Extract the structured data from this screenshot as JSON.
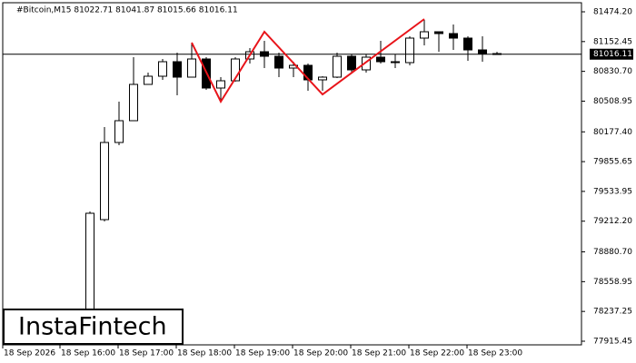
{
  "chart_data": {
    "type": "candlestick",
    "title": "#Bitcoin,M15  81022.71 81041.87 81015.66 81016.11",
    "watermark": "InstaFintech",
    "x_labels": [
      "18 Sep 2026",
      "18 Sep 16:00",
      "18 Sep 17:00",
      "18 Sep 18:00",
      "18 Sep 19:00",
      "18 Sep 20:00",
      "18 Sep 21:00",
      "18 Sep 22:00",
      "18 Sep 23:00"
    ],
    "open": [
      77974.2,
      79229.1,
      80062.4,
      80297.7,
      80689.9,
      80778.1,
      80935.0,
      80768.3,
      80964.4,
      80650.7,
      80729.0,
      80964.4,
      81042.8,
      80993.8,
      80866.4,
      80895.8,
      80739.0,
      80768.3,
      80993.8,
      80846.8,
      80984.0,
      80935.0,
      80925.2,
      81189.9,
      81258.5,
      81238.9,
      81189.9,
      81062.4,
      81022.71
    ],
    "high": [
      79317.4,
      80229.1,
      80503.6,
      80984.0,
      80817.3,
      80964.4,
      81033.0,
      81131.1,
      80984.0,
      80768.3,
      80984.0,
      81082.0,
      81160.5,
      81033.0,
      80935.0,
      80915.4,
      80778.1,
      81033.0,
      81013.4,
      81013.4,
      81160.5,
      81013.4,
      81209.5,
      81386.0,
      81258.5,
      81337.0,
      81209.5,
      81209.5,
      81041.87
    ],
    "low": [
      77895.7,
      79209.5,
      80033.0,
      80297.7,
      80689.9,
      80739.0,
      80572.2,
      80768.3,
      80631.1,
      80523.2,
      80719.3,
      80915.4,
      80866.4,
      80768.3,
      80768.3,
      80621.3,
      80621.3,
      80758.5,
      80817.3,
      80817.3,
      80915.4,
      80866.4,
      80895.8,
      81111.5,
      81042.8,
      81062.4,
      80944.8,
      80935.0,
      81015.66
    ],
    "close": [
      79297.7,
      80062.4,
      80297.7,
      80689.9,
      80778.1,
      80935.0,
      80768.3,
      80964.4,
      80650.7,
      80729.0,
      80964.4,
      81042.8,
      80993.8,
      80866.4,
      80895.8,
      80739.0,
      80768.3,
      80993.8,
      80846.8,
      80984.0,
      80935.0,
      80925.2,
      81189.9,
      81258.5,
      81238.9,
      81189.9,
      81062.4,
      81022.7,
      81016.11
    ],
    "current_price": 81016.11,
    "pattern": {
      "color": "#e8141a",
      "candle_index": [
        7,
        9,
        12,
        16,
        23
      ],
      "values": [
        81140.9,
        80503.6,
        81258.5,
        80582.0,
        81395.8
      ]
    },
    "ylim": [
      77876.2,
      81572.2
    ],
    "yticks": [
      {
        "value": 81474.2,
        "label": "81474.20"
      },
      {
        "value": 81152.45,
        "label": "81152.45"
      },
      {
        "value": 80830.7,
        "label": "80830.70"
      },
      {
        "value": 80508.95,
        "label": "80508.95"
      },
      {
        "value": 80177.4,
        "label": "80177.40"
      },
      {
        "value": 79855.65,
        "label": "79855.65"
      },
      {
        "value": 79533.95,
        "label": "79533.95"
      },
      {
        "value": 79212.2,
        "label": "79212.20"
      },
      {
        "value": 78880.7,
        "label": "78880.70"
      },
      {
        "value": 78558.95,
        "label": "78558.95"
      },
      {
        "value": 78237.25,
        "label": "78237.25"
      },
      {
        "value": 77915.45,
        "label": "77915.45"
      }
    ]
  }
}
